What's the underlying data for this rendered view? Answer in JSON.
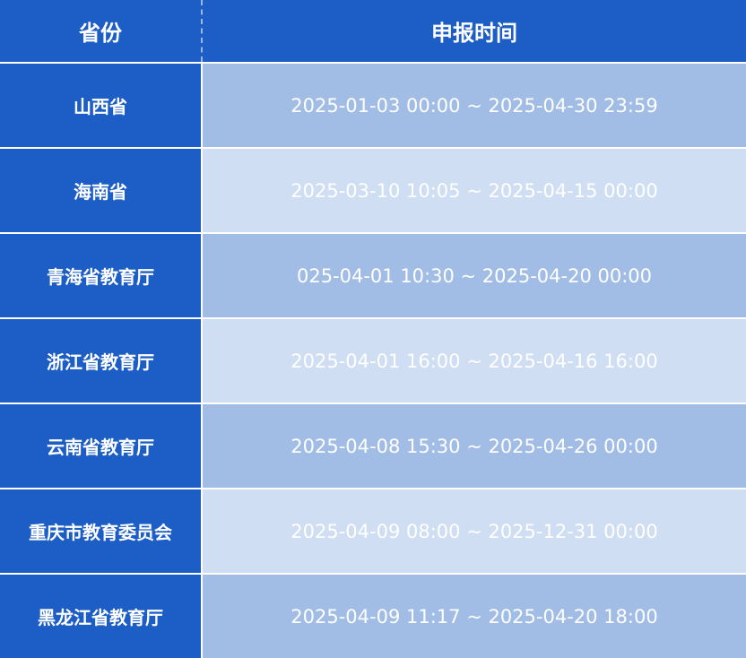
{
  "header": {
    "province": "省份",
    "time": "申报时间"
  },
  "rows": [
    {
      "province": "山西省",
      "time": "2025-01-03 00:00 ~ 2025-04-30 23:59"
    },
    {
      "province": "海南省",
      "time": "2025-03-10 10:05 ~ 2025-04-15 00:00"
    },
    {
      "province": "青海省教育厅",
      "time": "025-04-01 10:30 ~ 2025-04-20 00:00"
    },
    {
      "province": "浙江省教育厅",
      "time": "2025-04-01 16:00 ~ 2025-04-16 16:00"
    },
    {
      "province": "云南省教育厅",
      "time": "2025-04-08 15:30 ~ 2025-04-26 00:00"
    },
    {
      "province": "重庆市教育委员会",
      "time": "2025-04-09 08:00 ~ 2025-12-31 00:00"
    },
    {
      "province": "黑龙江省教育厅",
      "time": "2025-04-09 11:17 ~ 2025-04-20 18:00"
    }
  ],
  "colors": {
    "header": "#1c5ec5",
    "row_dark": "#a1bde6",
    "row_light": "#cfdef2"
  }
}
